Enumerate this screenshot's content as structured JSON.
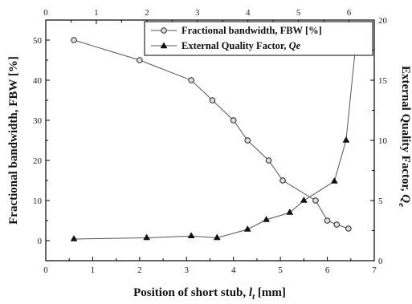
{
  "chart_data": {
    "type": "line",
    "xlabel": "Position of short stub, ",
    "xlabel_var": "l",
    "xlabel_sub": "t",
    "xlabel_unit": " [mm]",
    "ylabel": "Fractional bandwidth, FBW [%]",
    "y2label": "External Quality Factor, ",
    "y2label_var": "Q",
    "y2label_sub": "e",
    "xlim": [
      0,
      7
    ],
    "x_ticks": [
      "0",
      "1",
      "2",
      "3",
      "4",
      "5",
      "6",
      "7"
    ],
    "top_xlim": [
      0,
      6.5
    ],
    "top_ticks": [
      "0",
      "1",
      "2",
      "3",
      "4",
      "5",
      "6"
    ],
    "ylim": [
      -5,
      55
    ],
    "y_ticks": [
      "0",
      "10",
      "20",
      "30",
      "40",
      "50"
    ],
    "y2lim": [
      0,
      20
    ],
    "y2_ticks": [
      "0",
      "5",
      "10",
      "15",
      "20"
    ],
    "legend_position": "top-right",
    "series": [
      {
        "name": "Fractional bandwidth, FBW [%]",
        "axis": "left",
        "marker": "circle",
        "x": [
          0.6,
          2.0,
          3.1,
          3.55,
          4.0,
          4.3,
          4.75,
          5.05,
          5.75,
          6.0,
          6.2,
          6.45
        ],
        "y": [
          50,
          45,
          40,
          35,
          30,
          25,
          20,
          15,
          10,
          5,
          4,
          3
        ]
      },
      {
        "name": "External Quality Factor, ",
        "name_var": "Qe",
        "axis": "right",
        "marker": "triangle",
        "x": [
          0.6,
          2.15,
          3.1,
          3.65,
          4.3,
          4.7,
          5.2,
          5.5,
          6.15,
          6.4,
          6.62
        ],
        "y": [
          1.8,
          1.9,
          2.05,
          1.9,
          2.6,
          3.4,
          4.0,
          5.0,
          6.6,
          10.0,
          18.5
        ]
      }
    ]
  }
}
